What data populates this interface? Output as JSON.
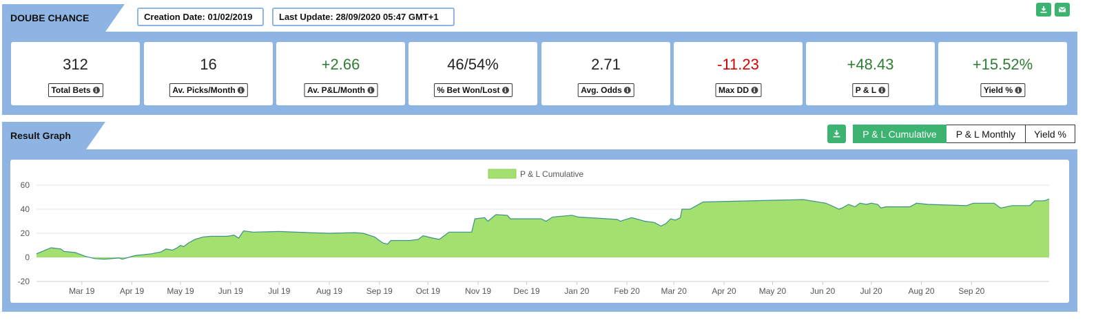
{
  "header": {
    "title": "DOUBE CHANCE",
    "creation": "Creation Date: 01/02/2019",
    "last_update": "Last Update: 28/09/2020 05:47 GMT+1"
  },
  "stats": [
    {
      "value": "312",
      "label": "Total Bets",
      "tone": "neutral"
    },
    {
      "value": "16",
      "label": "Av. Picks/Month",
      "tone": "neutral"
    },
    {
      "value": "+2.66",
      "label": "Av. P&L/Month",
      "tone": "pos"
    },
    {
      "value": "46/54%",
      "label": "% Bet Won/Lost",
      "tone": "neutral"
    },
    {
      "value": "2.71",
      "label": "Avg. Odds",
      "tone": "neutral"
    },
    {
      "value": "-11.23",
      "label": "Max DD",
      "tone": "neg"
    },
    {
      "value": "+48.43",
      "label": "P & L",
      "tone": "pos"
    },
    {
      "value": "+15.52%",
      "label": "Yield %",
      "tone": "pos"
    }
  ],
  "graph": {
    "section_title": "Result Graph",
    "toggles": [
      "P & L Cumulative",
      "P & L Monthly",
      "Yield %"
    ],
    "active_toggle": "P & L Cumulative"
  },
  "colors": {
    "accent": "#8db4e2",
    "button": "#3cb371",
    "area_fill": "#a3e070",
    "area_line": "#3a8f8a"
  },
  "icons": {
    "export": "download-icon",
    "mail": "envelope-icon",
    "info": "info-icon"
  },
  "chart_data": {
    "type": "area",
    "legend": "P & L Cumulative",
    "legend_position": "top-center",
    "ylim": [
      -20,
      60
    ],
    "yticks": [
      -20,
      0,
      20,
      40,
      60
    ],
    "xlim": [
      "2019-02-01",
      "2020-09-28"
    ],
    "xticks": [
      {
        "date": "2019-03-01",
        "label": "Mar 19"
      },
      {
        "date": "2019-04-01",
        "label": "Apr 19"
      },
      {
        "date": "2019-05-01",
        "label": "May 19"
      },
      {
        "date": "2019-06-01",
        "label": "Jun 19"
      },
      {
        "date": "2019-07-01",
        "label": "Jul 19"
      },
      {
        "date": "2019-08-01",
        "label": "Aug 19"
      },
      {
        "date": "2019-09-01",
        "label": "Sep 19"
      },
      {
        "date": "2019-10-01",
        "label": "Oct 19"
      },
      {
        "date": "2019-11-01",
        "label": "Nov 19"
      },
      {
        "date": "2019-12-01",
        "label": "Dec 19"
      },
      {
        "date": "2020-01-01",
        "label": "Jan 20"
      },
      {
        "date": "2020-02-01",
        "label": "Feb 20"
      },
      {
        "date": "2020-03-01",
        "label": "Mar 20"
      },
      {
        "date": "2020-04-01",
        "label": "Apr 20"
      },
      {
        "date": "2020-05-01",
        "label": "May 20"
      },
      {
        "date": "2020-06-01",
        "label": "Jun 20"
      },
      {
        "date": "2020-07-01",
        "label": "Jul 20"
      },
      {
        "date": "2020-08-01",
        "label": "Aug 20"
      },
      {
        "date": "2020-09-01",
        "label": "Sep 20"
      }
    ],
    "grid": true,
    "points": [
      [
        "2019-02-01",
        3
      ],
      [
        "2019-02-10",
        8
      ],
      [
        "2019-02-16",
        7
      ],
      [
        "2019-02-18",
        5
      ],
      [
        "2019-02-25",
        4
      ],
      [
        "2019-03-03",
        1
      ],
      [
        "2019-03-09",
        -1
      ],
      [
        "2019-03-15",
        -1.5
      ],
      [
        "2019-03-24",
        -0.5
      ],
      [
        "2019-03-26",
        -1.5
      ],
      [
        "2019-04-03",
        1.5
      ],
      [
        "2019-04-13",
        3
      ],
      [
        "2019-04-19",
        4.5
      ],
      [
        "2019-04-22",
        7
      ],
      [
        "2019-04-26",
        6
      ],
      [
        "2019-04-29",
        8
      ],
      [
        "2019-05-01",
        10
      ],
      [
        "2019-05-03",
        9
      ],
      [
        "2019-05-06",
        12
      ],
      [
        "2019-05-10",
        15
      ],
      [
        "2019-05-15",
        17
      ],
      [
        "2019-05-20",
        17.5
      ],
      [
        "2019-05-30",
        17.5
      ],
      [
        "2019-06-03",
        18.5
      ],
      [
        "2019-06-06",
        16
      ],
      [
        "2019-06-09",
        22
      ],
      [
        "2019-06-15",
        21
      ],
      [
        "2019-07-01",
        21.5
      ],
      [
        "2019-07-20",
        20.5
      ],
      [
        "2019-08-01",
        20
      ],
      [
        "2019-08-17",
        20.5
      ],
      [
        "2019-08-22",
        20
      ],
      [
        "2019-08-29",
        17
      ],
      [
        "2019-09-03",
        12
      ],
      [
        "2019-09-06",
        11
      ],
      [
        "2019-09-08",
        14
      ],
      [
        "2019-09-20",
        14
      ],
      [
        "2019-09-25",
        15
      ],
      [
        "2019-09-28",
        18
      ],
      [
        "2019-10-04",
        16
      ],
      [
        "2019-10-08",
        15
      ],
      [
        "2019-10-14",
        21
      ],
      [
        "2019-10-28",
        21
      ],
      [
        "2019-10-30",
        32
      ],
      [
        "2019-11-05",
        33
      ],
      [
        "2019-11-07",
        30
      ],
      [
        "2019-11-12",
        35.5
      ],
      [
        "2019-11-19",
        35
      ],
      [
        "2019-11-21",
        32
      ],
      [
        "2019-12-10",
        32
      ],
      [
        "2019-12-13",
        30
      ],
      [
        "2019-12-17",
        33.5
      ],
      [
        "2019-12-29",
        35
      ],
      [
        "2020-01-02",
        33.5
      ],
      [
        "2020-01-26",
        31.5
      ],
      [
        "2020-01-28",
        30
      ],
      [
        "2020-01-30",
        31
      ],
      [
        "2020-02-04",
        33
      ],
      [
        "2020-02-12",
        30
      ],
      [
        "2020-02-18",
        29
      ],
      [
        "2020-02-22",
        26
      ],
      [
        "2020-02-25",
        28
      ],
      [
        "2020-02-28",
        32
      ],
      [
        "2020-03-02",
        31
      ],
      [
        "2020-03-05",
        33
      ],
      [
        "2020-03-06",
        40
      ],
      [
        "2020-03-11",
        40
      ],
      [
        "2020-03-19",
        46
      ],
      [
        "2020-05-20",
        48
      ],
      [
        "2020-06-03",
        45
      ],
      [
        "2020-06-08",
        42
      ],
      [
        "2020-06-11",
        40
      ],
      [
        "2020-06-13",
        41
      ],
      [
        "2020-06-17",
        44
      ],
      [
        "2020-06-21",
        42
      ],
      [
        "2020-06-24",
        45
      ],
      [
        "2020-06-28",
        44
      ],
      [
        "2020-07-01",
        45
      ],
      [
        "2020-07-05",
        44
      ],
      [
        "2020-07-07",
        41
      ],
      [
        "2020-07-10",
        42
      ],
      [
        "2020-07-25",
        42
      ],
      [
        "2020-07-29",
        45
      ],
      [
        "2020-08-05",
        44
      ],
      [
        "2020-08-29",
        43
      ],
      [
        "2020-09-02",
        45
      ],
      [
        "2020-09-15",
        45
      ],
      [
        "2020-09-19",
        41
      ],
      [
        "2020-09-26",
        43
      ],
      [
        "2020-10-07",
        43
      ],
      [
        "2020-10-10",
        47
      ],
      [
        "2020-10-16",
        47
      ],
      [
        "2020-10-19",
        48.43
      ]
    ]
  }
}
